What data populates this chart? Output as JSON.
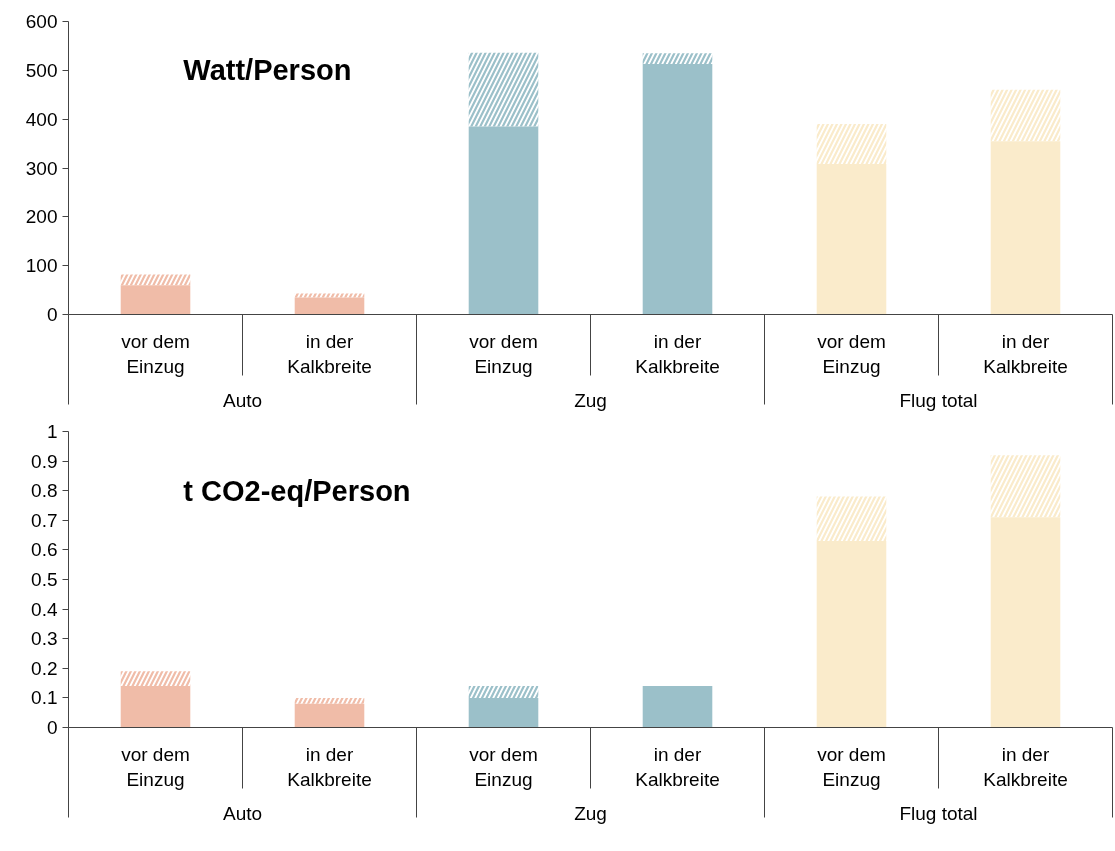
{
  "chart_data": [
    {
      "type": "bar",
      "title": "Watt/Person",
      "categories": [
        "vor dem Einzug",
        "in der Kalkbreite",
        "vor dem Einzug",
        "in der Kalkbreite",
        "vor dem Einzug",
        "in der Kalkbreite"
      ],
      "annotations": [
        "Auto",
        "Zug",
        "Flug total"
      ],
      "stacked": true,
      "series": [
        {
          "colors": [
            "#f0bca8",
            "#f0bca8",
            "#9bc0c9",
            "#9bc0c9",
            "#faebcb",
            "#faebcb"
          ],
          "values": [
            60,
            35,
            385,
            513,
            308,
            355
          ]
        },
        {
          "colors": [
            "#f0bca8",
            "#f0bca8",
            "#9bc0c9",
            "#9bc0c9",
            "#faebcb",
            "#faebcb"
          ],
          "values": [
            22,
            8,
            151,
            22,
            82,
            105
          ]
        }
      ],
      "ylim": [
        0,
        600
      ],
      "yticks": [
        0,
        100,
        200,
        300,
        400,
        500,
        600
      ]
    },
    {
      "type": "bar",
      "title": "t CO2-eq/Person",
      "categories": [
        "vor dem Einzug",
        "in der Kalkbreite",
        "vor dem Einzug",
        "in der Kalkbreite",
        "vor dem Einzug",
        "in der Kalkbreite"
      ],
      "annotations": [
        "Auto",
        "Zug",
        "Flug total"
      ],
      "stacked": true,
      "series": [
        {
          "colors": [
            "#f0bca8",
            "#f0bca8",
            "#9bc0c9",
            "#9bc0c9",
            "#faebcb",
            "#faebcb"
          ],
          "values": [
            0.14,
            0.08,
            0.1,
            0.14,
            0.63,
            0.71
          ]
        },
        {
          "colors": [
            "#f0bca8",
            "#f0bca8",
            "#9bc0c9",
            "#9bc0c9",
            "#faebcb",
            "#faebcb"
          ],
          "values": [
            0.05,
            0.02,
            0.04,
            null,
            0.15,
            0.21
          ]
        }
      ],
      "ylim": [
        0,
        1
      ],
      "yticks": [
        0,
        0.1,
        0.2,
        0.3,
        0.4,
        0.5,
        0.6,
        0.7,
        0.8,
        0.9,
        1
      ]
    }
  ]
}
